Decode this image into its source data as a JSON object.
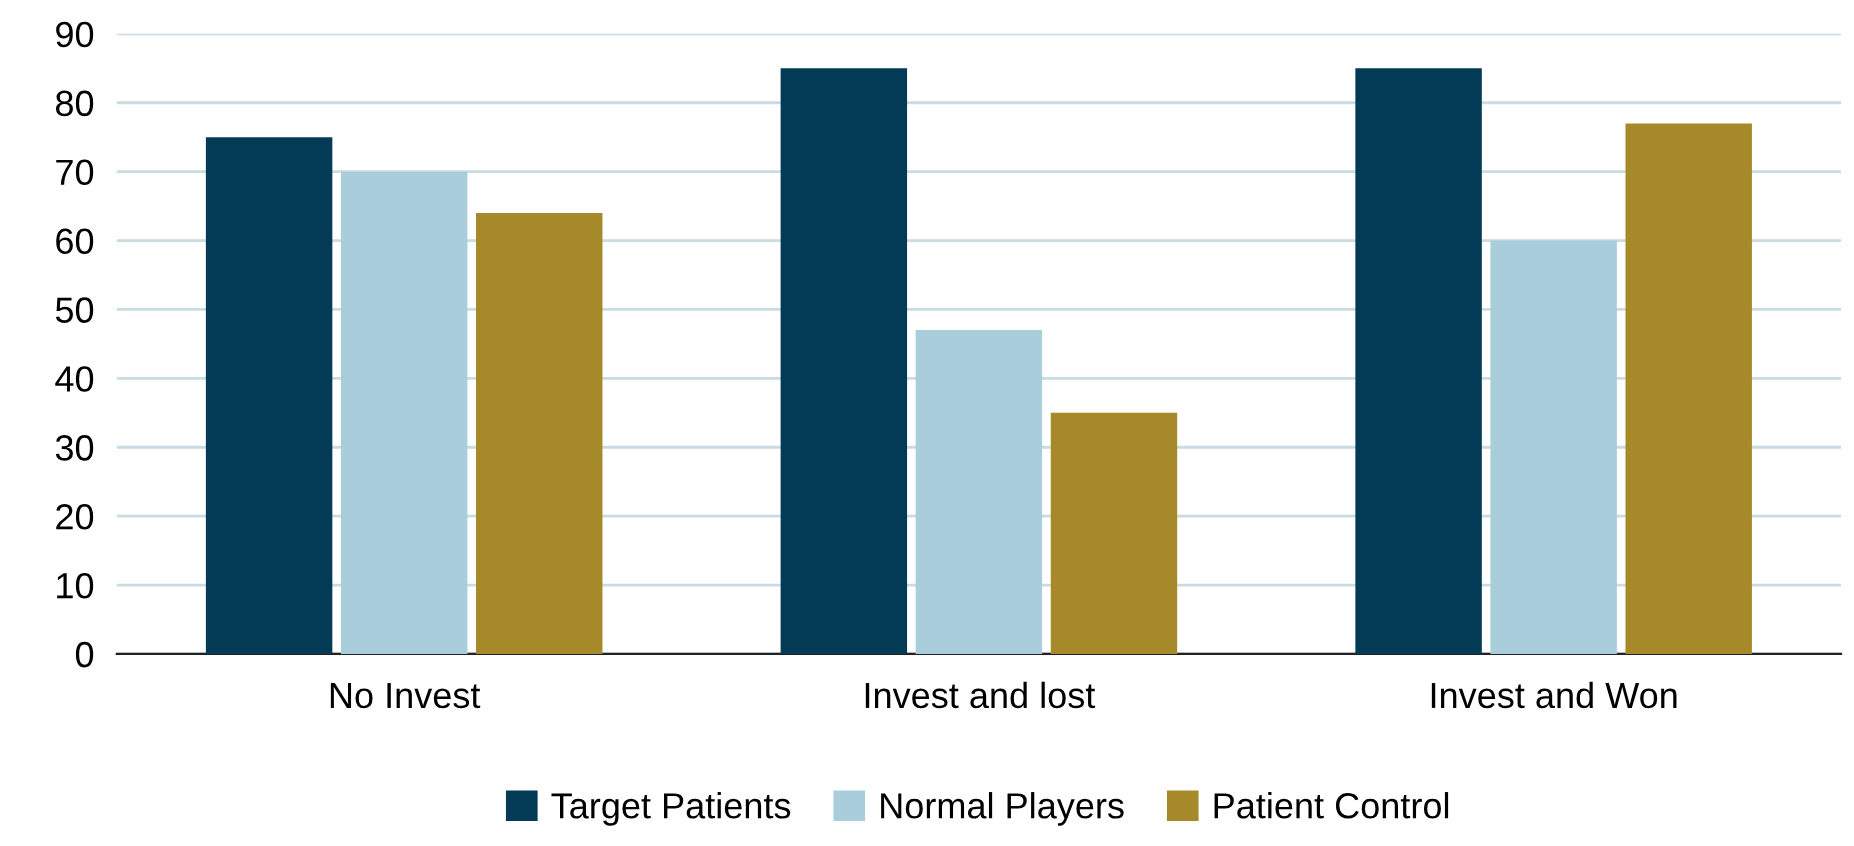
{
  "chart_data": {
    "type": "bar",
    "categories": [
      "No Invest",
      "Invest and lost",
      "Invest and Won"
    ],
    "series": [
      {
        "name": "Target Patients",
        "color": "#033a56",
        "values": [
          75,
          85,
          85
        ]
      },
      {
        "name": "Normal Players",
        "color": "#a9cddb",
        "values": [
          70,
          47,
          60
        ]
      },
      {
        "name": "Patient Control",
        "color": "#a68a29",
        "values": [
          64,
          35,
          77
        ]
      }
    ],
    "ylim": [
      0,
      90
    ],
    "yticks": [
      0,
      10,
      20,
      30,
      40,
      50,
      60,
      70,
      80,
      90
    ],
    "grid": "y",
    "legend": "bottom"
  }
}
